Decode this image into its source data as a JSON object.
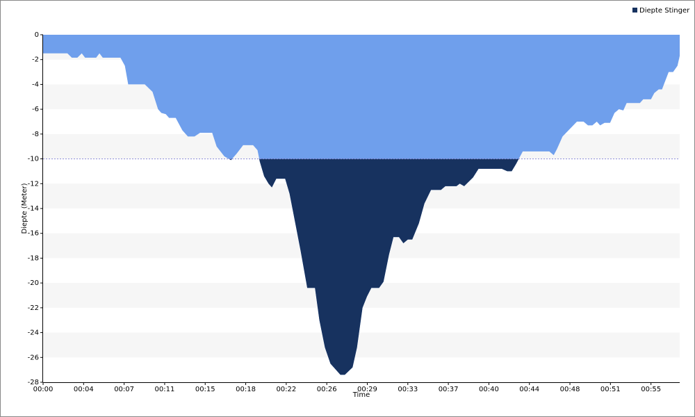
{
  "chart_data": {
    "type": "area",
    "x_label": "Time",
    "y_label": "Diepte (Meter)",
    "xlim": [
      0,
      57.6
    ],
    "ylim": [
      -28,
      0
    ],
    "xticks": [
      {
        "value": 0,
        "label": "00:00"
      },
      {
        "value": 3.667,
        "label": "00:04"
      },
      {
        "value": 7.333,
        "label": "00:07"
      },
      {
        "value": 11,
        "label": "00:11"
      },
      {
        "value": 14.667,
        "label": "00:15"
      },
      {
        "value": 18.333,
        "label": "00:18"
      },
      {
        "value": 22,
        "label": "00:22"
      },
      {
        "value": 25.667,
        "label": "00:26"
      },
      {
        "value": 29.333,
        "label": "00:29"
      },
      {
        "value": 33,
        "label": "00:33"
      },
      {
        "value": 36.667,
        "label": "00:37"
      },
      {
        "value": 40.333,
        "label": "00:40"
      },
      {
        "value": 44,
        "label": "00:44"
      },
      {
        "value": 47.667,
        "label": "00:48"
      },
      {
        "value": 51.333,
        "label": "00:51"
      },
      {
        "value": 55,
        "label": "00:55"
      }
    ],
    "yticks": [
      -28,
      -26,
      -24,
      -22,
      -20,
      -18,
      -16,
      -14,
      -12,
      -10,
      -8,
      -6,
      -4,
      -2,
      0
    ],
    "grid": "bands",
    "threshold": -10,
    "legend": "top-right",
    "x": [
      0,
      2.2,
      2.6,
      3.1,
      3.5,
      3.8,
      4.8,
      5.1,
      5.4,
      7.0,
      7.4,
      7.7,
      9.2,
      9.9,
      10.4,
      10.7,
      11.1,
      11.4,
      12.0,
      12.6,
      13.1,
      13.7,
      14.2,
      15.3,
      15.7,
      16.4,
      17.0,
      17.5,
      18.1,
      19.0,
      19.4,
      19.6,
      20.0,
      20.4,
      20.7,
      21.1,
      21.9,
      22.3,
      22.8,
      23.3,
      23.9,
      24.6,
      25.0,
      25.5,
      26.0,
      26.9,
      27.3,
      28.0,
      28.4,
      28.9,
      29.3,
      29.7,
      30.4,
      30.8,
      31.3,
      31.7,
      32.2,
      32.6,
      33.0,
      33.4,
      34.0,
      34.5,
      35.1,
      36.0,
      36.4,
      37.4,
      37.7,
      38.1,
      38.9,
      39.4,
      41.5,
      42.0,
      42.4,
      42.8,
      43.4,
      45.8,
      46.2,
      46.5,
      47.0,
      48.3,
      48.9,
      49.3,
      49.7,
      50.1,
      50.4,
      50.8,
      51.3,
      51.7,
      52.1,
      52.5,
      52.8,
      54.0,
      54.3,
      55.0,
      55.3,
      55.7,
      56.0,
      56.6,
      57.0,
      57.4,
      57.6
    ],
    "series": [
      {
        "name": "Diepte Stinger",
        "color": "#6f9fec",
        "below_color": "#17325f",
        "values": [
          -1.5,
          -1.5,
          -1.85,
          -1.85,
          -1.5,
          -1.85,
          -1.85,
          -1.5,
          -1.85,
          -1.85,
          -2.5,
          -4.0,
          -4.0,
          -4.6,
          -6.0,
          -6.3,
          -6.4,
          -6.7,
          -6.7,
          -7.7,
          -8.2,
          -8.2,
          -7.9,
          -7.9,
          -9.0,
          -9.8,
          -10.1,
          -9.6,
          -8.9,
          -8.9,
          -9.3,
          -10.2,
          -11.4,
          -12.0,
          -12.3,
          -11.6,
          -11.6,
          -12.8,
          -15.1,
          -17.4,
          -20.4,
          -20.4,
          -23.0,
          -25.2,
          -26.5,
          -27.4,
          -27.4,
          -26.8,
          -25.2,
          -22.0,
          -21.1,
          -20.4,
          -20.4,
          -19.9,
          -17.7,
          -16.3,
          -16.3,
          -16.8,
          -16.5,
          -16.5,
          -15.2,
          -13.6,
          -12.5,
          -12.5,
          -12.2,
          -12.2,
          -12.0,
          -12.2,
          -11.5,
          -10.8,
          -10.8,
          -11.0,
          -11.0,
          -10.4,
          -9.4,
          -9.4,
          -9.7,
          -9.2,
          -8.2,
          -7.0,
          -7.0,
          -7.3,
          -7.3,
          -7.0,
          -7.3,
          -7.1,
          -7.1,
          -6.3,
          -6.0,
          -6.1,
          -5.5,
          -5.5,
          -5.2,
          -5.2,
          -4.7,
          -4.4,
          -4.4,
          -3.0,
          -3.0,
          -2.5,
          -1.7
        ]
      }
    ]
  }
}
